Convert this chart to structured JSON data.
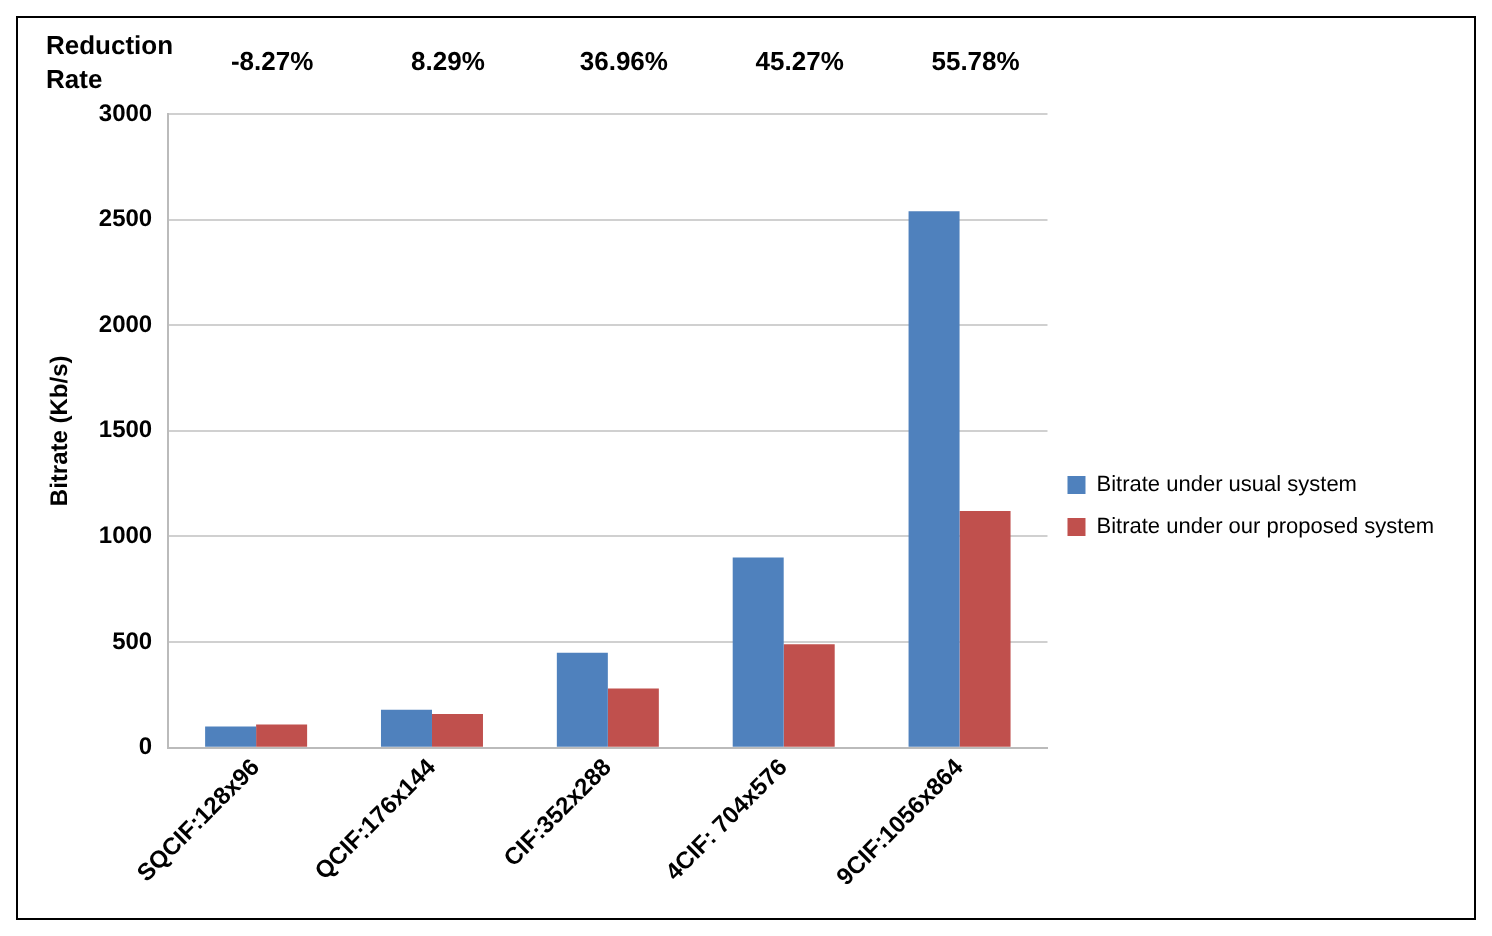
{
  "chart_data": {
    "type": "bar",
    "ylabel": "Bitrate (Kb/s)",
    "categories": [
      "SQCIF:128x96",
      "QCIF:176x144",
      "CIF:352x288",
      "4CIF: 704x576",
      "9CIF:1056x864"
    ],
    "series": [
      {
        "name": "Bitrate under usual system",
        "color": "#4f81bd",
        "values": [
          100,
          180,
          450,
          900,
          2540
        ]
      },
      {
        "name": "Bitrate under our proposed system",
        "color": "#c0504d",
        "values": [
          110,
          160,
          280,
          490,
          1120
        ]
      }
    ],
    "ylim": [
      0,
      3000
    ],
    "yticks": [
      0,
      500,
      1000,
      1500,
      2000,
      2500,
      3000
    ],
    "grid": "y",
    "legend": "right",
    "annotations": [
      "Reduction Rate",
      "-8.27%",
      "8.29%",
      "36.96%",
      "45.27%",
      "55.78%"
    ]
  }
}
